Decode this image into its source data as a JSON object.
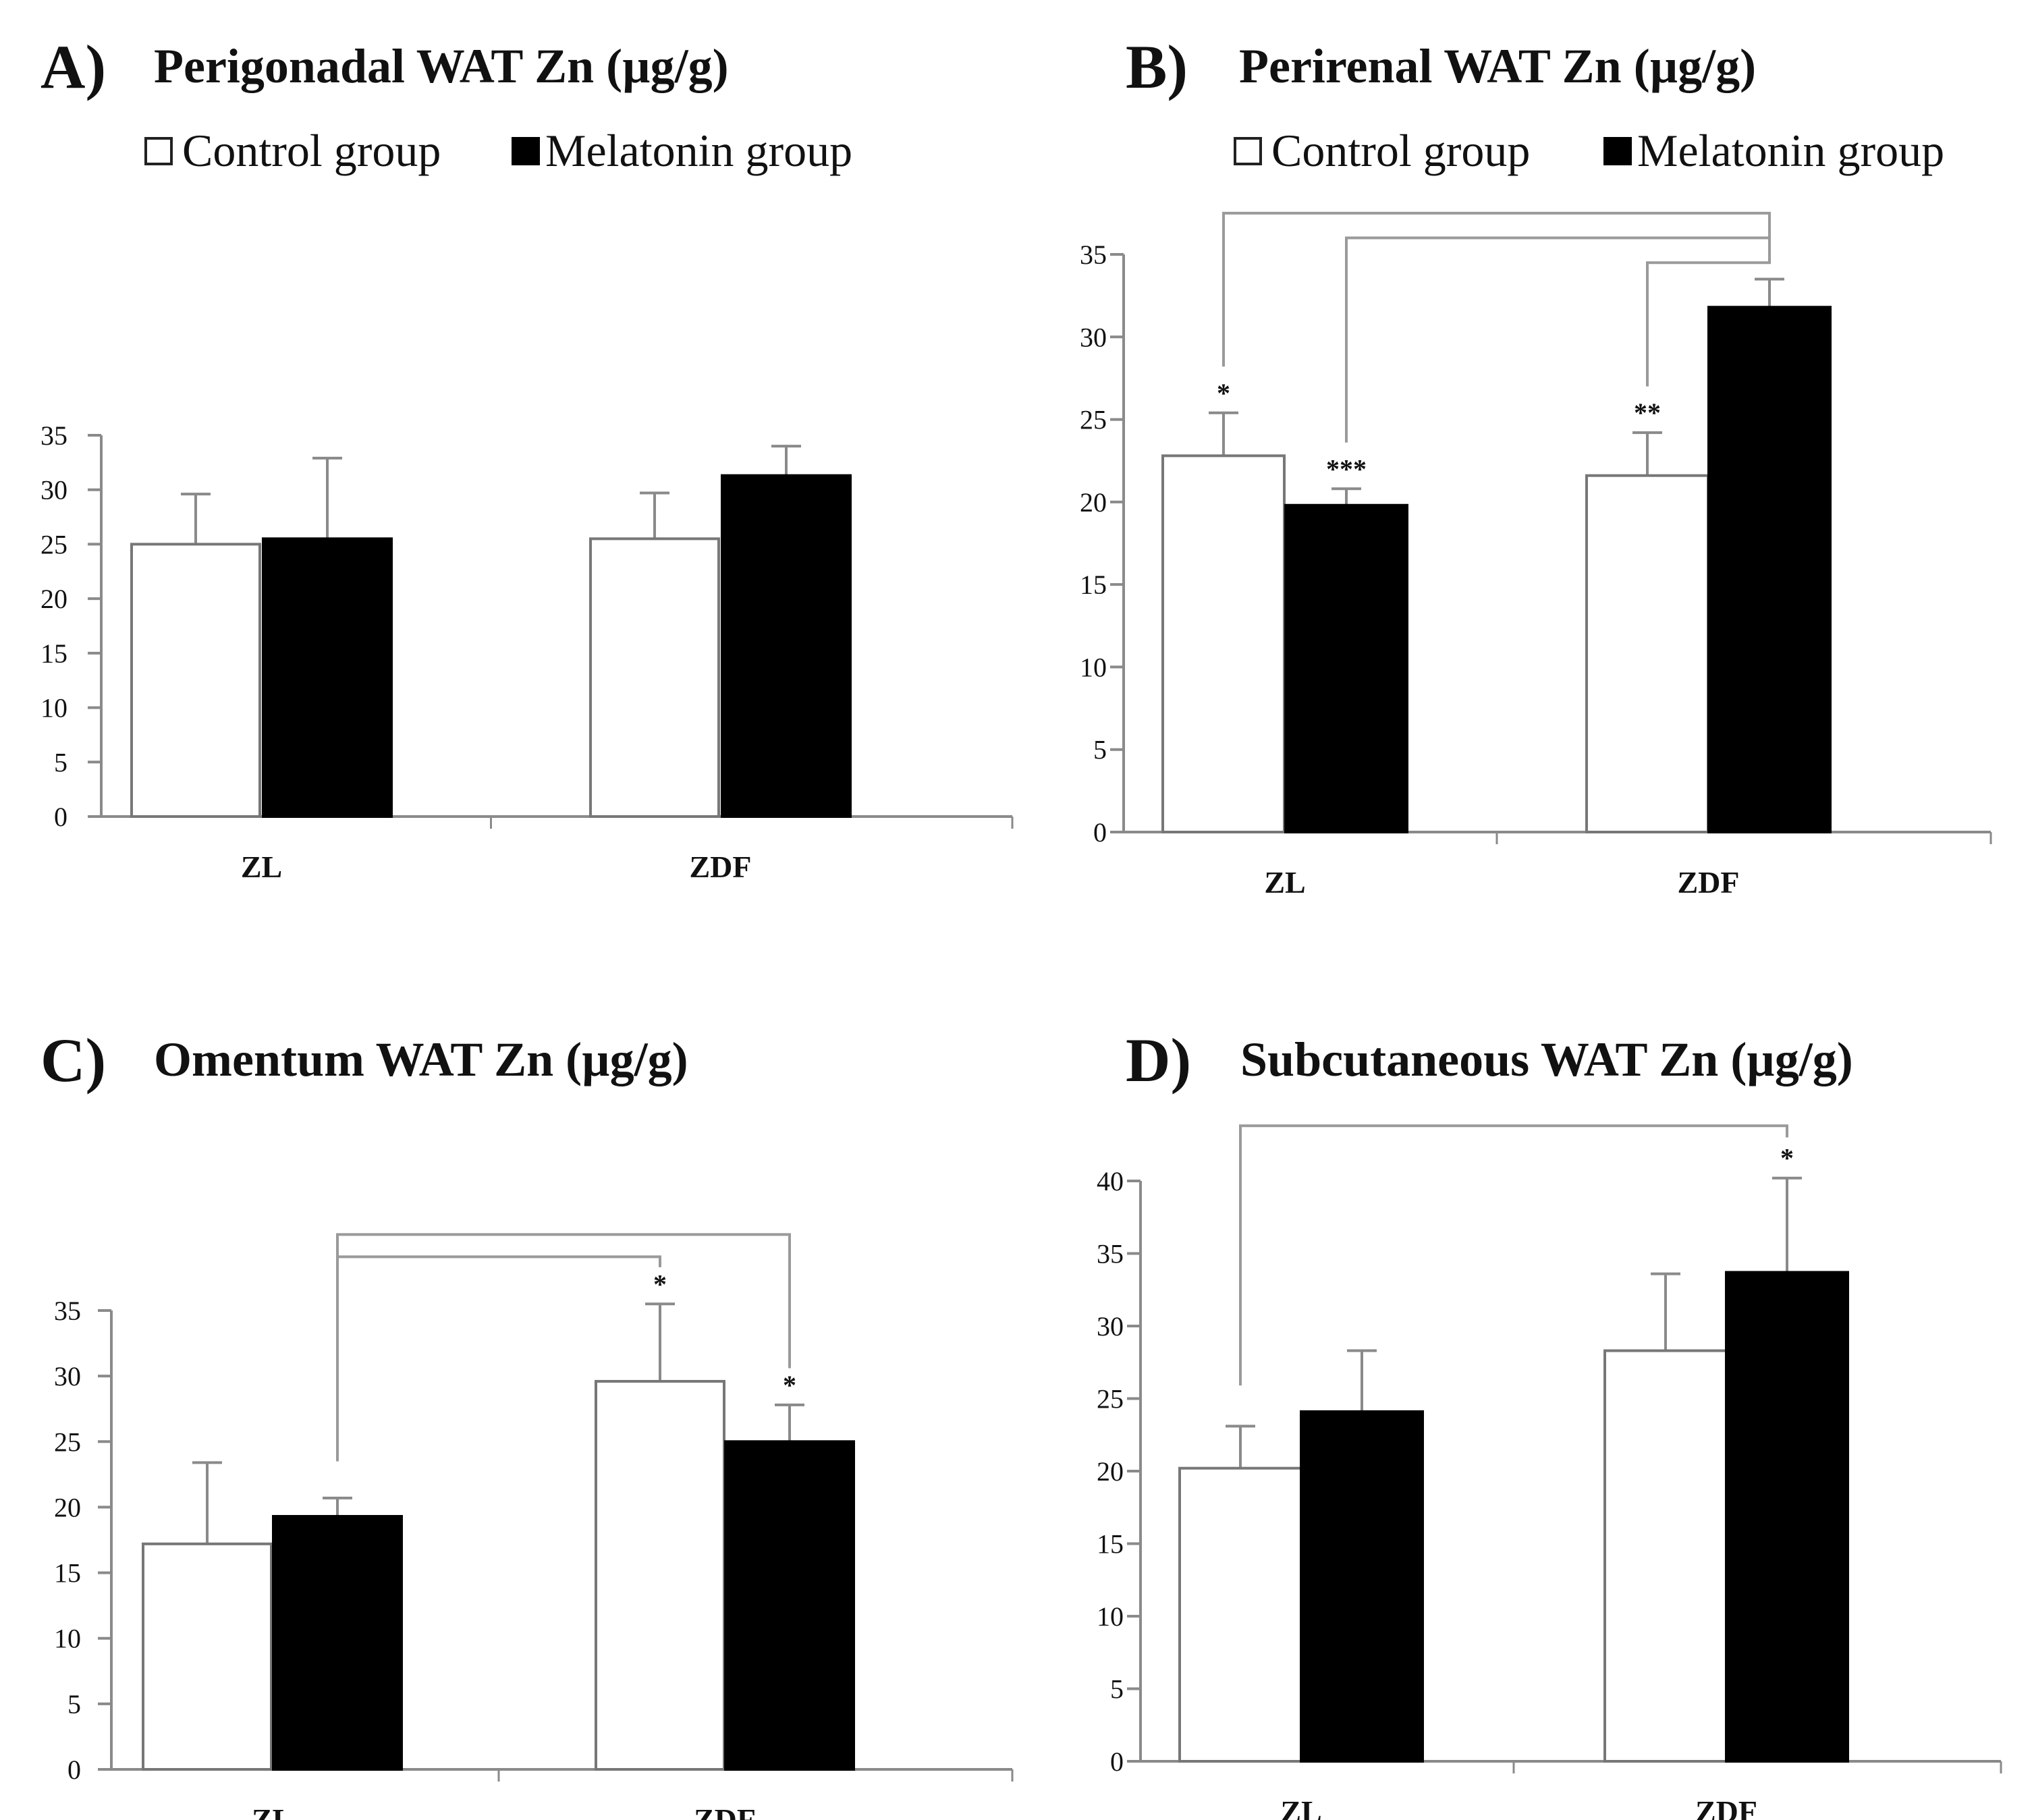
{
  "figure": {
    "legend": {
      "control": "Control group",
      "melatonin": "Melatonin group"
    }
  },
  "colors": {
    "control": "#ffffff",
    "melatonin": "#000000",
    "axis": "#8a8a8a",
    "bracket": "#9a9a9a"
  },
  "chart_data": [
    {
      "id": "A",
      "type": "bar",
      "letter": "A)",
      "title": "Perigonadal WAT Zn (µg/g)",
      "show_legend": true,
      "categories": [
        "ZL",
        "ZDF"
      ],
      "ylim": [
        0,
        35
      ],
      "yticks": [
        0,
        5,
        10,
        15,
        20,
        25,
        30,
        35
      ],
      "series": [
        {
          "name": "Control group",
          "key": "control",
          "values": [
            25,
            25.5
          ],
          "errors": [
            4.6,
            4.2
          ]
        },
        {
          "name": "Melatonin group",
          "key": "melatonin",
          "values": [
            25.5,
            31.3
          ],
          "errors": [
            7.4,
            2.7
          ]
        }
      ],
      "significance": [],
      "brackets": []
    },
    {
      "id": "B",
      "type": "bar",
      "letter": "B)",
      "title": "Perirenal WAT Zn (µg/g)",
      "show_legend": true,
      "categories": [
        "ZL",
        "ZDF"
      ],
      "ylim": [
        0,
        35
      ],
      "yticks": [
        0,
        5,
        10,
        15,
        20,
        25,
        30,
        35
      ],
      "series": [
        {
          "name": "Control group",
          "key": "control",
          "values": [
            22.8,
            21.6
          ],
          "errors": [
            2.6,
            2.6
          ]
        },
        {
          "name": "Melatonin group",
          "key": "melatonin",
          "values": [
            19.8,
            31.8
          ],
          "errors": [
            1.0,
            1.7
          ]
        }
      ],
      "significance": [
        {
          "series": 0,
          "category": 0,
          "label": "*"
        },
        {
          "series": 1,
          "category": 0,
          "label": "***"
        },
        {
          "series": 0,
          "category": 1,
          "label": "**"
        }
      ],
      "brackets": [
        {
          "from": [
            0,
            0
          ],
          "to": [
            1,
            1
          ],
          "y": 37.5
        },
        {
          "from": [
            1,
            0
          ],
          "to": [
            1,
            1
          ],
          "y": 36.0
        },
        {
          "from": [
            0,
            1
          ],
          "to": [
            1,
            1
          ],
          "y": 34.5
        }
      ]
    },
    {
      "id": "C",
      "type": "bar",
      "letter": "C)",
      "title": "Omentum WAT Zn (µg/g)",
      "show_legend": false,
      "categories": [
        "ZL",
        "ZDF"
      ],
      "ylim": [
        0,
        35
      ],
      "yticks": [
        0,
        5,
        10,
        15,
        20,
        25,
        30,
        35
      ],
      "series": [
        {
          "name": "Control group",
          "key": "control",
          "values": [
            17.2,
            29.6
          ],
          "errors": [
            6.2,
            5.9
          ]
        },
        {
          "name": "Melatonin group",
          "key": "melatonin",
          "values": [
            19.3,
            25.0
          ],
          "errors": [
            1.4,
            2.8
          ]
        }
      ],
      "significance": [
        {
          "series": 0,
          "category": 1,
          "label": "*"
        },
        {
          "series": 1,
          "category": 1,
          "label": "*"
        }
      ],
      "brackets": [
        {
          "from": [
            1,
            0
          ],
          "to": [
            1,
            1
          ],
          "y": 40.8
        },
        {
          "from": [
            1,
            0
          ],
          "to": [
            0,
            1
          ],
          "y": 39.1
        }
      ]
    },
    {
      "id": "D",
      "type": "bar",
      "letter": "D)",
      "title": "Subcutaneous WAT Zn (µg/g)",
      "show_legend": false,
      "categories": [
        "ZL",
        "ZDF"
      ],
      "ylim": [
        0,
        40
      ],
      "yticks": [
        0,
        5,
        10,
        15,
        20,
        25,
        30,
        35,
        40
      ],
      "series": [
        {
          "name": "Control group",
          "key": "control",
          "values": [
            20.2,
            28.3
          ],
          "errors": [
            2.9,
            5.3
          ]
        },
        {
          "name": "Melatonin group",
          "key": "melatonin",
          "values": [
            24.1,
            33.7
          ],
          "errors": [
            4.2,
            6.5
          ]
        }
      ],
      "significance": [
        {
          "series": 1,
          "category": 1,
          "label": "*"
        }
      ],
      "brackets": [
        {
          "from": [
            0,
            0
          ],
          "to": [
            1,
            1
          ],
          "y": 43.8
        }
      ]
    }
  ]
}
